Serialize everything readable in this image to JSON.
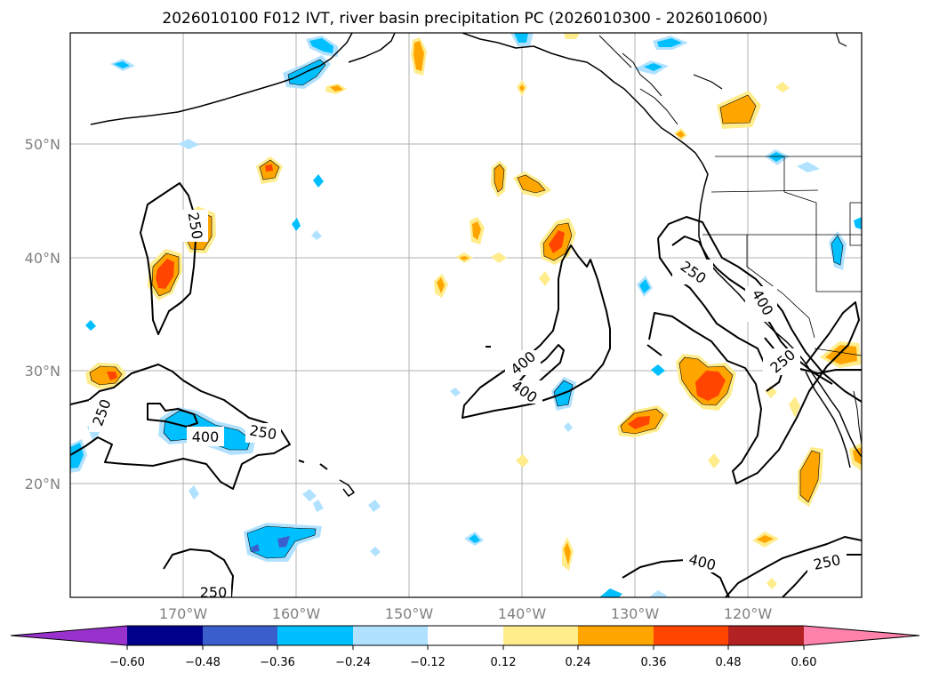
{
  "title": "2026010100 F012 IVT, river basin precipitation PC (2026010300 - 2026010600)",
  "map": {
    "lat_labels": [
      "50°N",
      "40°N",
      "30°N",
      "20°N"
    ],
    "lon_labels": [
      "170°W",
      "160°W",
      "150°W",
      "140°W",
      "130°W",
      "120°W"
    ],
    "contour_levels": [
      "250",
      "400"
    ],
    "contour_label_text": [
      "250",
      "250",
      "400",
      "250",
      "250",
      "400",
      "400",
      "250",
      "400",
      "250",
      "400",
      "250"
    ]
  },
  "colorbar": {
    "ticks": [
      "−0.60",
      "−0.48",
      "−0.36",
      "−0.24",
      "−0.12",
      "0.12",
      "0.24",
      "0.36",
      "0.48",
      "0.60"
    ],
    "colors": [
      "#9932cc",
      "#00008b",
      "#3a5fcd",
      "#00bfff",
      "#b0e2ff",
      "#ffffff",
      "#ffec8b",
      "#ffa500",
      "#ff4500",
      "#b22222",
      "#ff82ab"
    ]
  }
}
